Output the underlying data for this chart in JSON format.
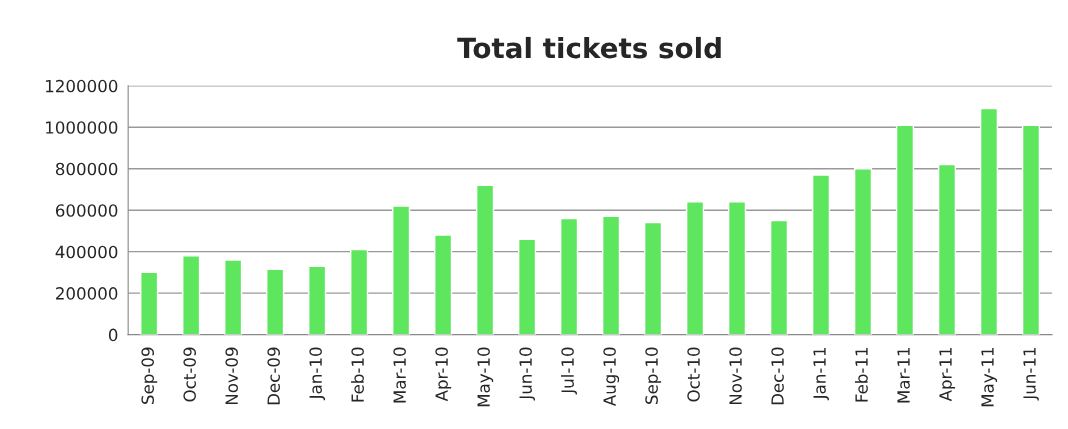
{
  "chart_data": {
    "type": "bar",
    "title": "Total tickets sold",
    "categories": [
      "Sep-09",
      "Oct-09",
      "Nov-09",
      "Dec-09",
      "Jan-10",
      "Feb-10",
      "Mar-10",
      "Apr-10",
      "May-10",
      "Jun-10",
      "Jul-10",
      "Aug-10",
      "Sep-10",
      "Oct-10",
      "Nov-10",
      "Dec-10",
      "Jan-11",
      "Feb-11",
      "Mar-11",
      "Apr-11",
      "May-11",
      "Jun-11"
    ],
    "values": [
      300000,
      380000,
      360000,
      315000,
      330000,
      410000,
      620000,
      480000,
      720000,
      460000,
      560000,
      570000,
      540000,
      640000,
      640000,
      550000,
      770000,
      800000,
      1010000,
      820000,
      1090000,
      1010000
    ],
    "color": "#5ee65e",
    "ylim": [
      0,
      1200000
    ],
    "yticks": [
      0,
      200000,
      400000,
      600000,
      800000,
      1000000,
      1200000
    ],
    "grid": "y"
  }
}
